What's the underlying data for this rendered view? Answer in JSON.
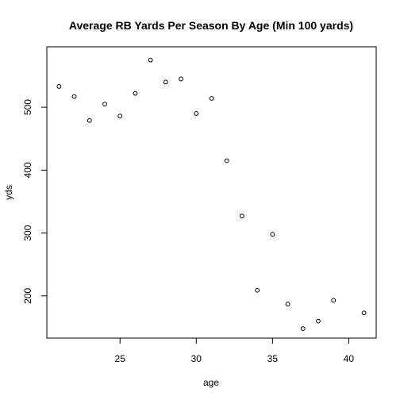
{
  "chart_data": {
    "type": "scatter",
    "title": "Average RB Yards Per Season By Age (Min 100 yards)",
    "xlabel": "age",
    "ylabel": "yds",
    "xlim": [
      20.2,
      41.8
    ],
    "ylim": [
      133,
      596
    ],
    "x_ticks": [
      25,
      30,
      35,
      40
    ],
    "y_ticks": [
      200,
      300,
      400,
      500
    ],
    "x_tick_labels": [
      "25",
      "30",
      "35",
      "40"
    ],
    "y_tick_labels": [
      "200",
      "300",
      "400",
      "500"
    ],
    "grid": false,
    "legend": "none",
    "marker": "open-circle",
    "color": "#000000",
    "x": [
      21,
      22,
      23,
      24,
      25,
      26,
      27,
      28,
      29,
      30,
      31,
      32,
      33,
      34,
      35,
      36,
      37,
      38,
      39,
      41
    ],
    "y": [
      533,
      517,
      479,
      505,
      486,
      522,
      575,
      540,
      545,
      490,
      514,
      415,
      327,
      209,
      298,
      187,
      148,
      160,
      193,
      173
    ]
  }
}
